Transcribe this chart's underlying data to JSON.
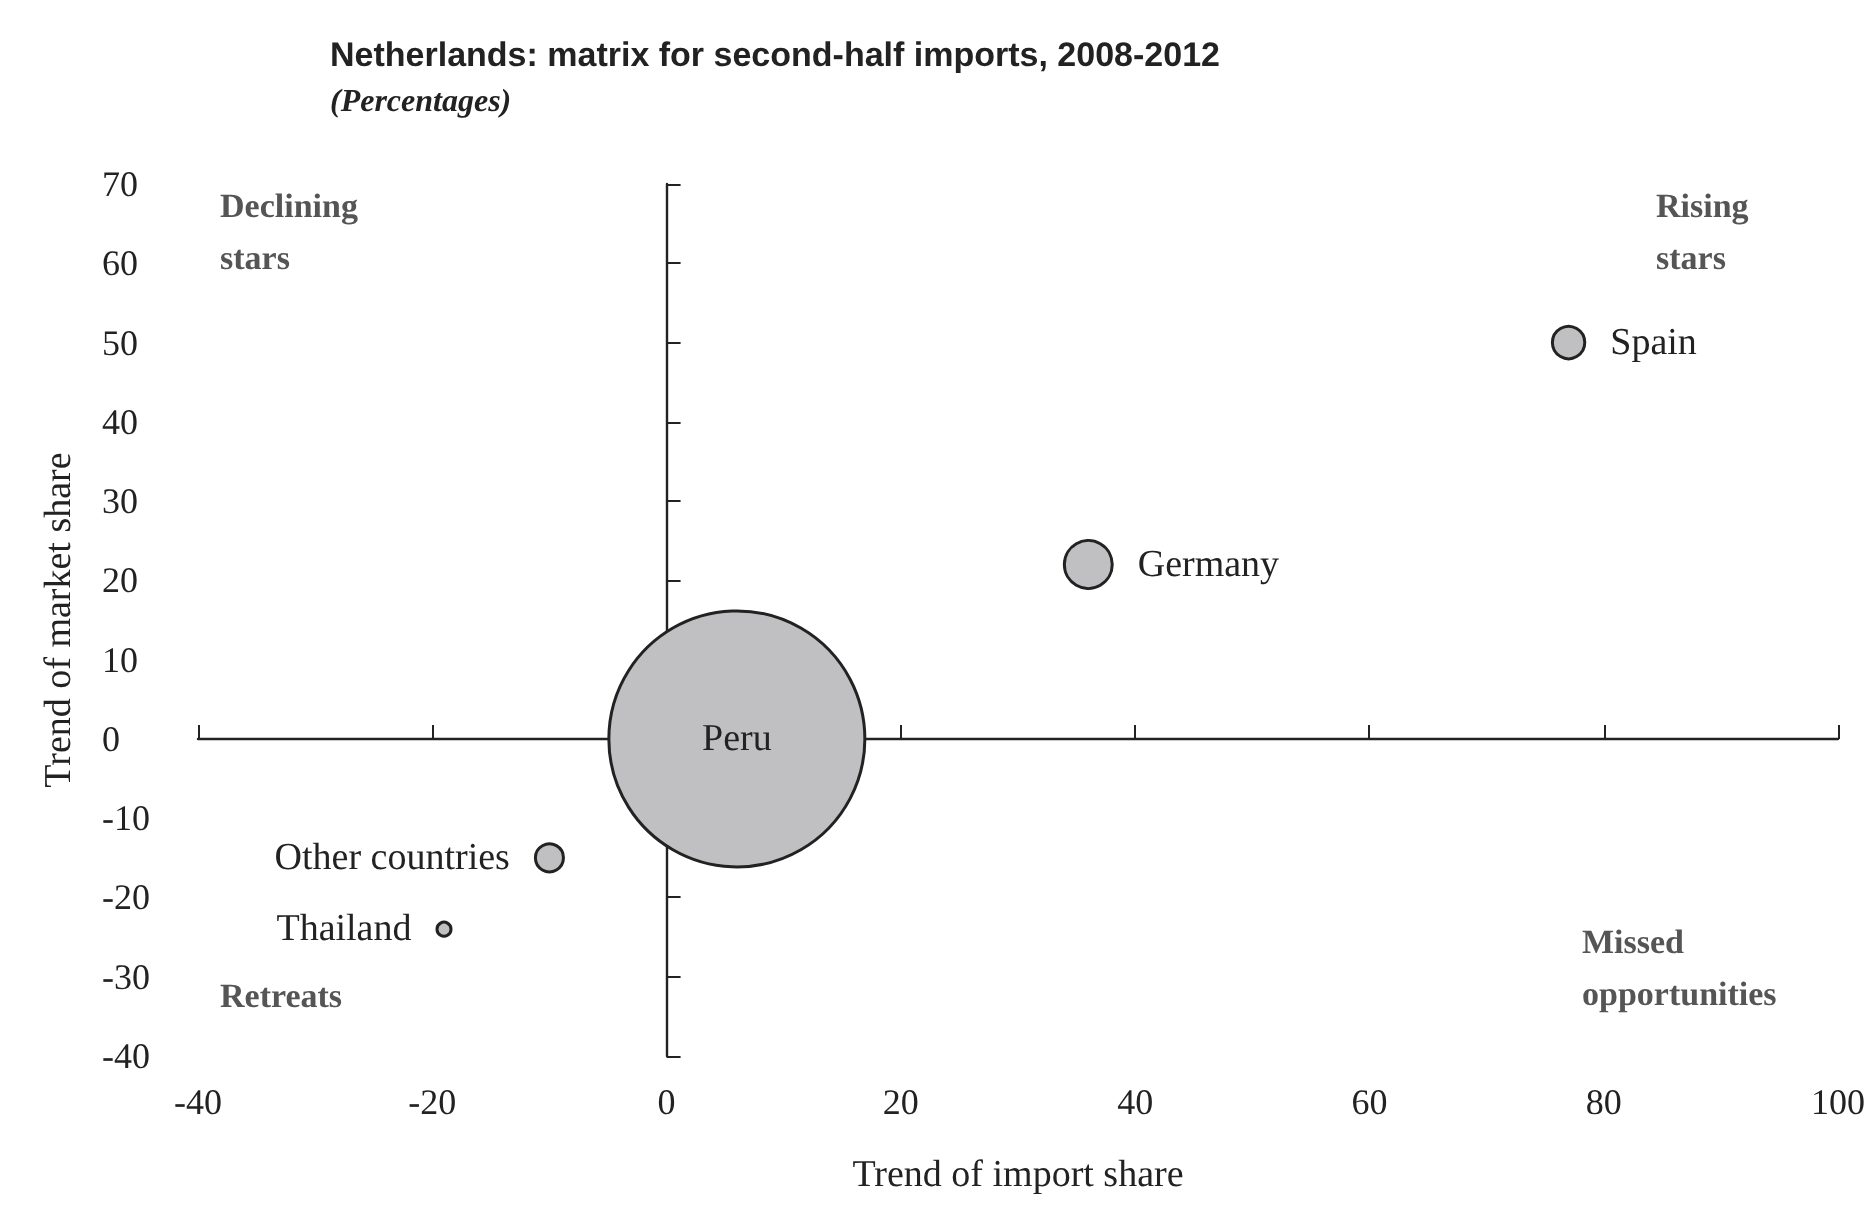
{
  "chart_data": {
    "type": "bubble",
    "title": "Netherlands: matrix for second-half imports, 2008-2012",
    "subtitle": "(Percentages)",
    "xlabel": "Trend of import share",
    "ylabel": "Trend of market share",
    "series": [
      {
        "name": "Peru",
        "color": "#c0c0c2",
        "x": [
          6
        ],
        "values": [
          0
        ],
        "sizes": [
          1
        ]
      },
      {
        "name": "Germany",
        "color": "#c0c0c2",
        "x": [
          36
        ],
        "values": [
          22
        ],
        "sizes": [
          0.035
        ]
      },
      {
        "name": "Spain",
        "color": "#c0c0c2",
        "x": [
          77
        ],
        "values": [
          50
        ],
        "sizes": [
          0.016
        ]
      },
      {
        "name": "Other countries",
        "color": "#c0c0c2",
        "x": [
          -10
        ],
        "values": [
          -15
        ],
        "sizes": [
          0.012
        ]
      },
      {
        "name": "Thailand",
        "color": "#c0c0c2",
        "x": [
          -19
        ],
        "values": [
          -24
        ],
        "sizes": [
          0.003
        ]
      }
    ],
    "annotations": [
      "Declining stars",
      "Rising stars",
      "Retreats",
      "Missed opportunities"
    ],
    "xlim": [
      -40,
      100
    ],
    "xticks": [
      -40,
      -20,
      0,
      20,
      40,
      60,
      80,
      100
    ],
    "ylim": [
      -40,
      70
    ],
    "yticks": [
      -40,
      -30,
      -20,
      -10,
      0,
      10,
      20,
      30,
      40,
      50,
      60,
      70
    ],
    "legend": false
  }
}
